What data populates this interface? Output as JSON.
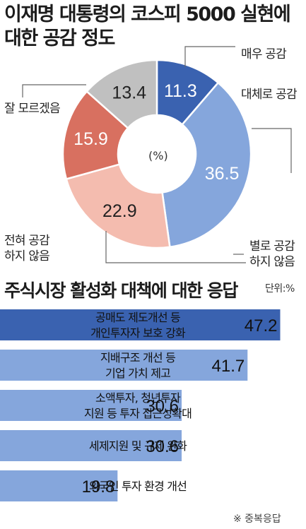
{
  "header": {
    "title": "이재명 대통령의 코스피 5000 실현에\n대한 공감 정도",
    "section2_title": "주식시장 활성화 대책에 대한 응답",
    "unit": "단위:%",
    "pie_unit": "(%)",
    "note": "※ 중복응답"
  },
  "chart_data": [
    {
      "type": "pie",
      "donut": true,
      "title": "이재명 대통령의 코스피 5000 실현에 대한 공감 정도",
      "categories": [
        "매우 공감",
        "대체로 공감",
        "별로 공감 하지 않음",
        "전혀 공감 하지 않음",
        "잘 모르겠음"
      ],
      "values": [
        11.3,
        36.5,
        22.9,
        15.9,
        13.4
      ],
      "value_labels": [
        "11.3",
        "36.5",
        "22.9",
        "15.9",
        "13.4"
      ],
      "colors": [
        "#3a62b0",
        "#85a6dc",
        "#f4bcaf",
        "#d87060",
        "#c0c0c0"
      ],
      "value_text_colors": [
        "#ffffff",
        "#ffffff",
        "#222222",
        "#ffffff",
        "#222222"
      ],
      "start": "top, clockwise"
    },
    {
      "type": "bar",
      "orientation": "horizontal",
      "title": "주식시장 활성화 대책에 대한 응답",
      "categories": [
        "공매도 제도개선 등 개인투자자 보호 강화",
        "지배구조 개선 등 기업 가치 제고",
        "소액투자, 청년투자 지원 등 투자 접근성확대",
        "세제지원 및 규제 완화",
        "외국인 투자 환경 개선"
      ],
      "category_lines": [
        [
          "공매도 제도개선 등",
          "개인투자자 보호 강화"
        ],
        [
          "지배구조 개선 등",
          "기업 가치 제고"
        ],
        [
          "소액투자, 청년투자",
          "지원 등 투자 접근성확대"
        ],
        [
          "세제지원 및 규제 완화"
        ],
        [
          "외국인 투자 환경 개선"
        ]
      ],
      "values": [
        47.2,
        41.7,
        30.6,
        30.6,
        19.8
      ],
      "value_labels": [
        "47.2",
        "41.7",
        "30.6",
        "30.6",
        "19.8"
      ],
      "unit": "%",
      "bar_colors": [
        "#3a62b0",
        "#85a6dc",
        "#85a6dc",
        "#85a6dc",
        "#85a6dc"
      ]
    }
  ]
}
